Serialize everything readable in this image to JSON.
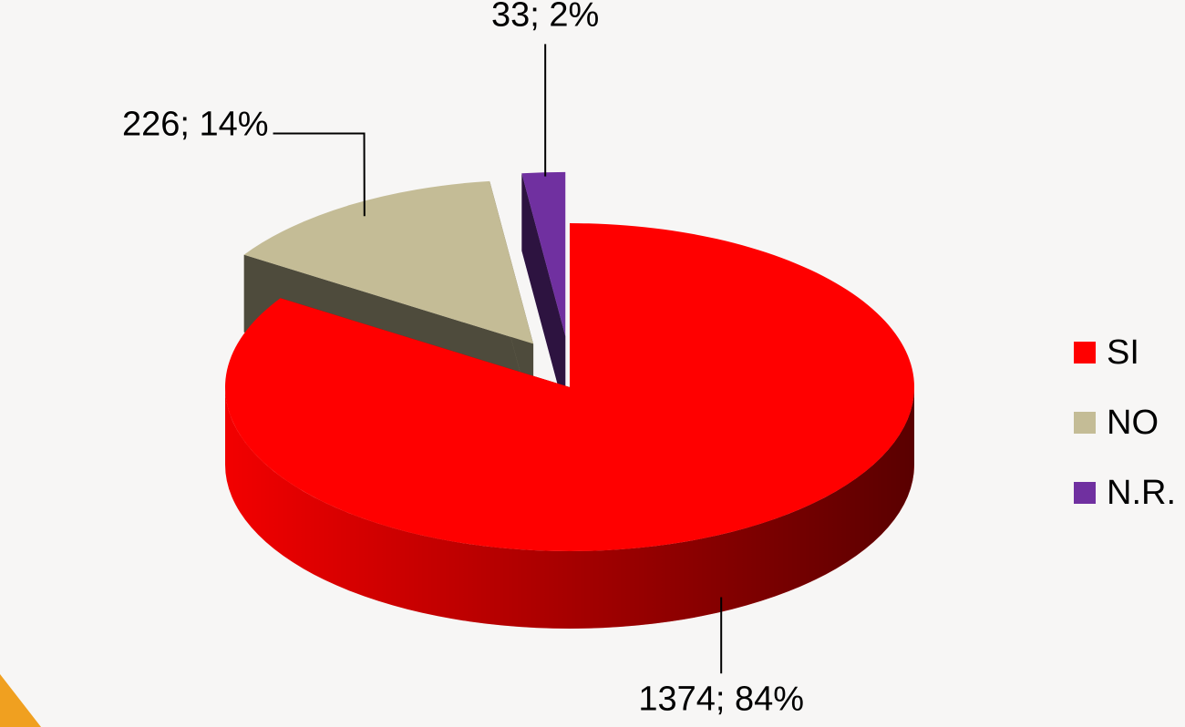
{
  "chart_data": {
    "type": "pie",
    "categories": [
      "SI",
      "NO",
      "N.R."
    ],
    "values": [
      1374,
      226,
      33
    ],
    "value_labels": [
      "1374; 84%",
      "226; 14%",
      "33; 2%"
    ],
    "colors": [
      "#ff0000",
      "#c4bc96",
      "#7030a0"
    ],
    "legend": "right"
  }
}
